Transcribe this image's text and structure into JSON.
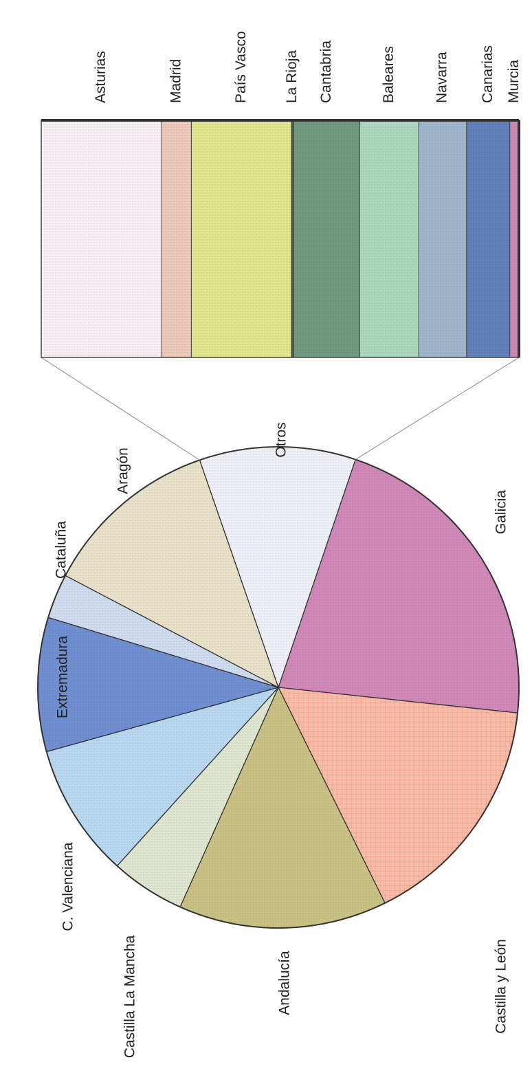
{
  "chart_data": {
    "type": "pie",
    "categories": [
      "Galicia",
      "Castilla y León",
      "Andalucía",
      "Castilla La Mancha",
      "C. Valenciana",
      "Extremadura",
      "Cataluña",
      "Aragón",
      "Otros"
    ],
    "values": [
      21.5,
      16,
      14,
      5,
      9,
      9,
      3,
      12,
      10.5
    ],
    "colors": [
      "#cf88b8",
      "#f6bba6",
      "#c9c284",
      "#dfe6cf",
      "#b9d7ef",
      "#6f8fd0",
      "#cfdcef",
      "#e8e1c9",
      "#eef0f6"
    ],
    "breakdown": {
      "type": "bar",
      "categories": [
        "Asturias",
        "Madrid",
        "País Vasco",
        "La Rioja",
        "Cantabria",
        "Baleares",
        "Navarra",
        "Canarias",
        "Murcia"
      ],
      "values": [
        2.65,
        0.65,
        2.2,
        0.05,
        1.45,
        1.3,
        1.05,
        0.95,
        0.2
      ],
      "colors": [
        "#f6eff4",
        "#ecc9b9",
        "#e0e68b",
        "#4f5f50",
        "#6f9a7f",
        "#aad7be",
        "#a0b4ca",
        "#6081bb",
        "#c98cb1"
      ]
    }
  }
}
